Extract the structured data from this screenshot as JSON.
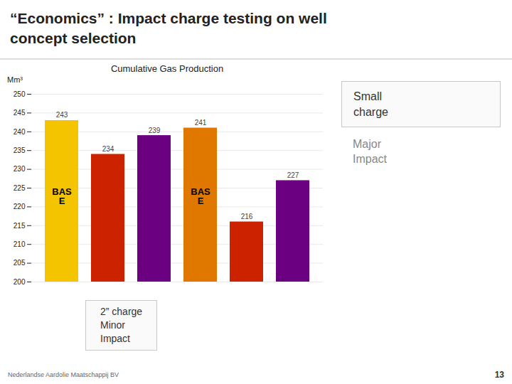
{
  "slide_title": [
    "“Economics” : Impact charge testing on well",
    "concept selection"
  ],
  "footnote": "Nederlandse Aardolie Maatschappij BV",
  "page_number": "13",
  "chart_data": {
    "type": "bar",
    "title": "Cumulative Gas Production",
    "ylabel": "Mm³",
    "categories": [
      null,
      null,
      null,
      null,
      null,
      null
    ],
    "values": [
      243,
      234,
      239,
      241,
      216,
      227
    ],
    "colors": [
      "#F5C400",
      "#CC2200",
      "#6B0080",
      "#E07800",
      "#CC2200",
      "#6B0080"
    ],
    "ylim": [
      200,
      250
    ],
    "yticks": [
      200,
      205,
      210,
      215,
      220,
      225,
      230,
      235,
      240,
      245,
      250
    ],
    "grid": true,
    "data_labels": true,
    "tick_labels": "y",
    "inside_labels": [
      [
        "BAS",
        "E"
      ],
      null,
      null,
      [
        "BAS",
        "E"
      ],
      null,
      null
    ],
    "annotations": [
      "Small\ncharge",
      "Major\nImpact",
      "2” charge\nMinor\nImpact"
    ]
  }
}
